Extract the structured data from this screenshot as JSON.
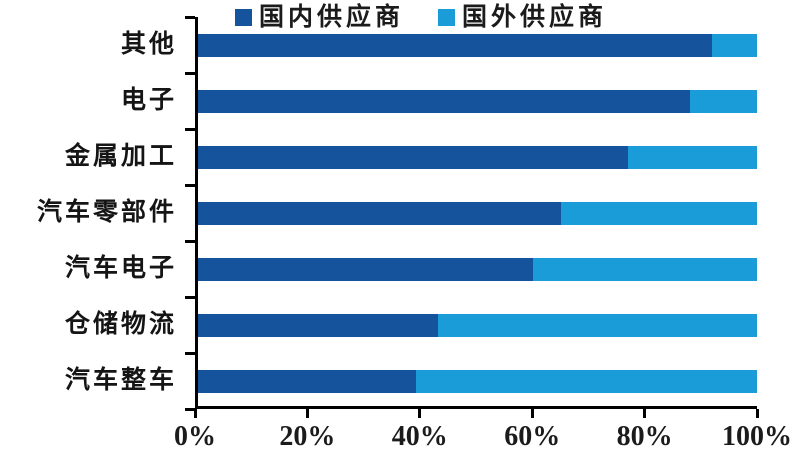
{
  "legend": {
    "items": [
      {
        "label": "国内供应商",
        "color": "#15549d"
      },
      {
        "label": "国外供应商",
        "color": "#1a9cd8"
      }
    ]
  },
  "chart_data": {
    "type": "bar",
    "orientation": "horizontal",
    "stacked": true,
    "title": "",
    "xlabel": "",
    "ylabel": "",
    "categories": [
      "其他",
      "电子",
      "金属加工",
      "汽车零部件",
      "汽车电子",
      "仓储物流",
      "汽车整车"
    ],
    "series": [
      {
        "name": "国内供应商",
        "color": "#15549d",
        "values": [
          92,
          88,
          77,
          65,
          60,
          43,
          39
        ]
      },
      {
        "name": "国外供应商",
        "color": "#1a9cd8",
        "values": [
          8,
          12,
          23,
          35,
          40,
          57,
          61
        ]
      }
    ],
    "x_tick_labels": [
      "0%",
      "20%",
      "40%",
      "60%",
      "80%",
      "100%"
    ],
    "x_tick_values": [
      0,
      20,
      40,
      60,
      80,
      100
    ],
    "xlim": [
      0,
      100
    ],
    "grid": false,
    "legend_position": "top"
  },
  "colors": {
    "axis": "#000000",
    "text": "#1b1b1b",
    "background": "#ffffff"
  }
}
